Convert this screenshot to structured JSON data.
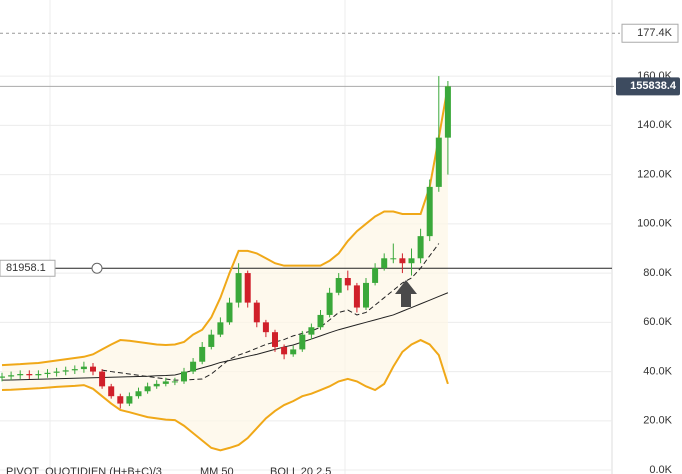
{
  "chart_data": {
    "type": "candlestick",
    "open": [
      37.5,
      38,
      38.5,
      39,
      38.5,
      39,
      39.5,
      40,
      40.5,
      41,
      42,
      40,
      34,
      30,
      27,
      30,
      32,
      34,
      35,
      36,
      36,
      40,
      44,
      50,
      55,
      60,
      68,
      80,
      68,
      60,
      56,
      50,
      47,
      49,
      55,
      58,
      63,
      72,
      78,
      75,
      66,
      76,
      82,
      86,
      86,
      84,
      86,
      95,
      115,
      135
    ],
    "high": [
      39.5,
      40,
      40.5,
      40.5,
      40.5,
      41,
      41.5,
      42,
      42.5,
      44,
      43.5,
      41,
      35,
      31,
      31.5,
      33.5,
      35.5,
      36.5,
      37.5,
      37.5,
      41.5,
      45.5,
      52,
      57,
      62,
      70,
      84,
      81,
      69,
      61,
      57,
      51,
      50.5,
      56.5,
      59.5,
      65,
      74,
      80,
      81,
      76,
      78,
      84,
      88,
      92,
      88,
      90,
      98,
      118,
      160,
      158
    ],
    "low": [
      36,
      36.5,
      37,
      37,
      37,
      37.5,
      38,
      38.5,
      39,
      39.5,
      38.5,
      33,
      29,
      25,
      26,
      29,
      31,
      33,
      34,
      34.5,
      35,
      39,
      43,
      49,
      54,
      59,
      66,
      66,
      58,
      54,
      48,
      45,
      46,
      48,
      53,
      57,
      62,
      71,
      73,
      64,
      65,
      75,
      81,
      84,
      80,
      79,
      84,
      93,
      113,
      120
    ],
    "close": [
      38,
      38.5,
      39,
      38.5,
      39,
      39.5,
      40,
      40.5,
      41,
      42,
      40,
      34,
      30,
      27,
      30,
      32,
      34,
      35,
      36,
      36,
      40,
      44,
      50,
      55,
      60,
      68,
      80,
      68,
      60,
      56,
      50,
      47,
      49,
      55,
      58,
      63,
      72,
      78,
      75,
      66,
      76,
      82,
      86,
      86,
      84,
      86,
      95,
      115,
      135,
      155.8384
    ],
    "up_color": "#3aa83a",
    "down_color": "#d0202a",
    "series": [
      {
        "name": "BOLL 20 2.5",
        "color": "#f0a818",
        "dashed": false,
        "values": [
          42.6,
          42.8,
          43,
          43.3,
          43.5,
          44,
          44.5,
          45,
          45.5,
          46,
          47,
          49,
          51,
          52.8,
          52.5,
          52,
          51.5,
          51,
          50.8,
          51,
          52,
          55,
          57,
          62,
          70,
          80,
          89,
          89,
          88,
          86,
          84,
          83,
          83,
          83,
          83,
          83,
          85,
          88,
          93,
          97,
          100,
          103,
          105,
          105,
          104,
          104,
          104,
          115,
          135,
          156
        ]
      },
      {
        "name": "BOLL 20 2.5",
        "color": "#f0a818",
        "dashed": false,
        "values": [
          32.5,
          32.6,
          32.8,
          33,
          33.2,
          33.5,
          33.8,
          34,
          34.2,
          34.5,
          33,
          30,
          27,
          24.4,
          23.5,
          22.5,
          21.5,
          21,
          20.5,
          20.3,
          18,
          15,
          12,
          9,
          8,
          9,
          10.2,
          13,
          17,
          21,
          24,
          26.4,
          28,
          30,
          31,
          32.5,
          34,
          36,
          37,
          36,
          34,
          32.5,
          35,
          42,
          48,
          51,
          52.8,
          51,
          46.7,
          35
        ]
      },
      {
        "name": "BOLL 20 2.5",
        "color": "#222222",
        "dashed": true,
        "values": [
          null,
          null,
          null,
          null,
          null,
          null,
          null,
          null,
          null,
          null,
          null,
          40.6,
          40,
          39.5,
          39,
          38.5,
          38,
          37.5,
          37,
          36.5,
          36.5,
          36.8,
          37,
          39,
          42,
          45,
          46.7,
          48,
          49.5,
          51,
          52,
          53,
          54.5,
          55.5,
          56.5,
          58,
          61,
          64,
          65,
          63,
          64,
          67,
          70,
          73,
          76,
          78,
          82,
          87,
          92,
          null
        ]
      },
      {
        "name": "MM 50",
        "color": "#222222",
        "dashed": false,
        "values": [
          36.5,
          36.6,
          36.7,
          36.8,
          36.9,
          37,
          37.1,
          37.2,
          37.3,
          37.4,
          37.5,
          37.6,
          37.7,
          37.8,
          37.9,
          38,
          38.1,
          38.3,
          38.4,
          38.6,
          39.5,
          40.5,
          41.5,
          42.5,
          43.7,
          44.5,
          45.3,
          46.2,
          47,
          48,
          49,
          50,
          50.8,
          52,
          53.2,
          54.5,
          55.8,
          57,
          58,
          59,
          60,
          61,
          62,
          63,
          64.5,
          66,
          67.5,
          69,
          70.5,
          72
        ]
      }
    ],
    "ylim": [
      -1.6,
      190.9
    ],
    "yticks": [
      {
        "value": 0,
        "label": "0.0K"
      },
      {
        "value": 20,
        "label": "20.0K"
      },
      {
        "value": 40,
        "label": "40.0K"
      },
      {
        "value": 60,
        "label": "60.0K"
      },
      {
        "value": 80,
        "label": "80.0K"
      },
      {
        "value": 100,
        "label": "100.0K"
      },
      {
        "value": 120,
        "label": "120.0K"
      },
      {
        "value": 140,
        "label": "140.0K"
      },
      {
        "value": 160,
        "label": "160.0K"
      }
    ],
    "grid": true,
    "resistance": {
      "value": 177.4,
      "label": "177.4K"
    },
    "last_price": {
      "value": 155.8384,
      "label": "155838.4"
    },
    "horizontal_line": {
      "value": 81.9581,
      "label": "81958.1"
    },
    "indicators": [
      "PIVOT_QUOTIDIEN (H+B+C)/3",
      "MM 50",
      "BOLL 20 2.5"
    ]
  }
}
